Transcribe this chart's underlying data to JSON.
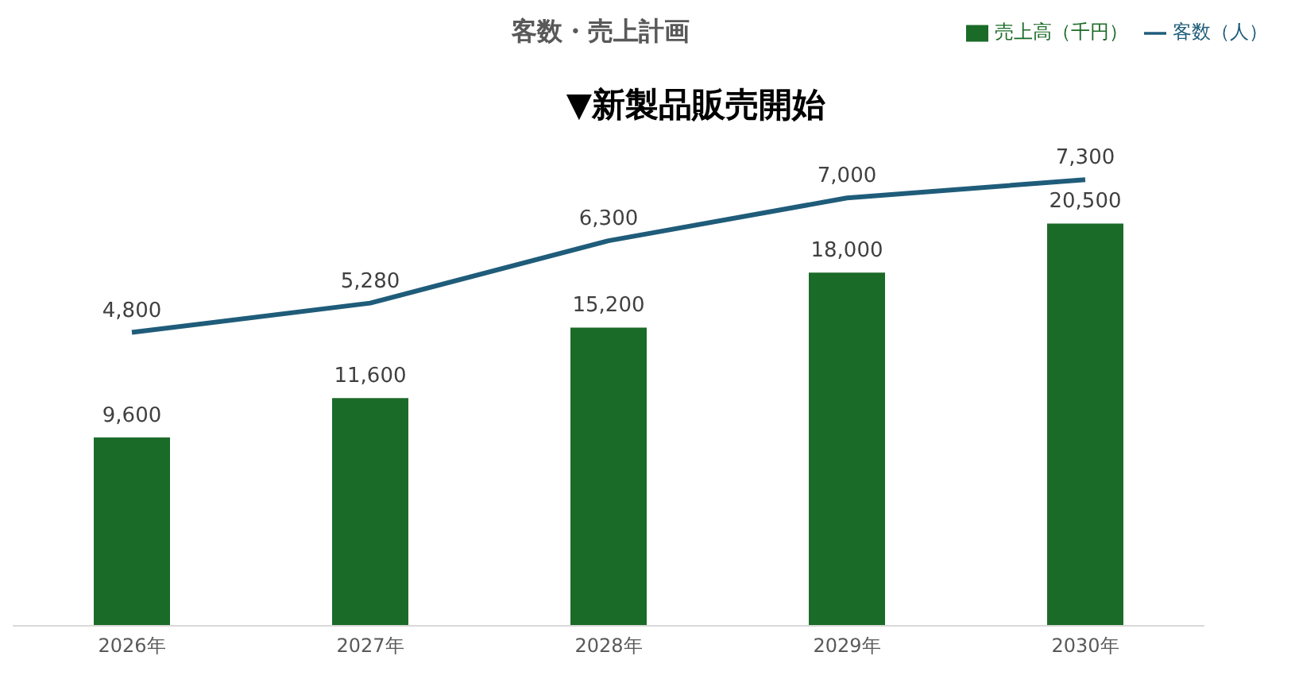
{
  "chart_data": {
    "type": "bar",
    "title": "客数・売上計画",
    "categories": [
      "2026年",
      "2027年",
      "2028年",
      "2029年",
      "2030年"
    ],
    "series": [
      {
        "name": "売上高（千円）",
        "color": "#1b6b28",
        "values": [
          9600,
          11600,
          15200,
          18000,
          20500
        ],
        "value_labels": [
          "9,600",
          "11,600",
          "15,200",
          "18,000",
          "20,500"
        ]
      },
      {
        "name": "客数（人）",
        "type": "line",
        "axis": "y2",
        "color": "#1f5c7a",
        "values": [
          4800,
          5280,
          6300,
          7000,
          7300
        ],
        "value_labels": [
          "4,800",
          "5,280",
          "6,300",
          "7,000",
          "7,300"
        ]
      }
    ],
    "tick_labels": "x",
    "grid": false,
    "legend": "top right",
    "marker": "none",
    "annotations": [
      "▼新製品販売開始"
    ]
  }
}
